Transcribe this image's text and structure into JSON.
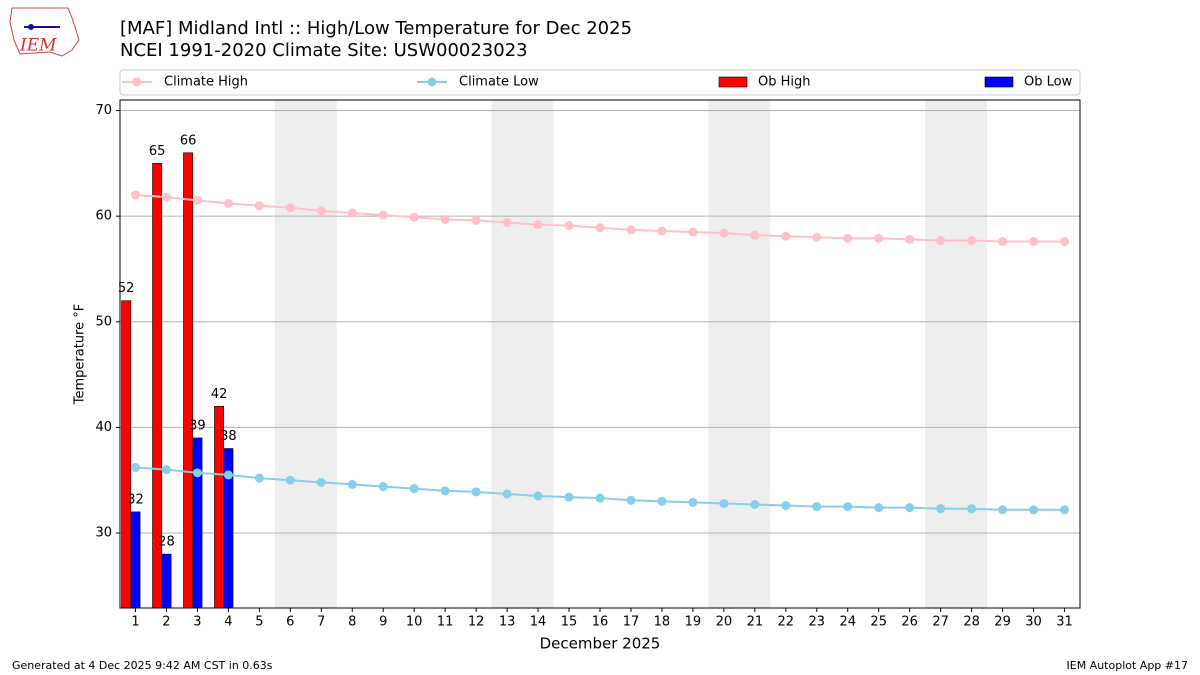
{
  "chart_data": {
    "type": "bar_line",
    "logo_text": "IEM",
    "title": "[MAF] Midland Intl :: High/Low Temperature for Dec 2025",
    "subtitle": "NCEI 1991-2020 Climate Site: USW00023023",
    "xlabel": "December 2025",
    "ylabel": "Temperature °F",
    "footer_left": "Generated at 4 Dec 2025 9:42 AM CST in 0.63s",
    "footer_right": "IEM Autoplot App #17",
    "x": [
      1,
      2,
      3,
      4,
      5,
      6,
      7,
      8,
      9,
      10,
      11,
      12,
      13,
      14,
      15,
      16,
      17,
      18,
      19,
      20,
      21,
      22,
      23,
      24,
      25,
      26,
      27,
      28,
      29,
      30,
      31
    ],
    "xlim": [
      0.5,
      31.5
    ],
    "ylim": [
      22.9,
      71
    ],
    "yticks": [
      30,
      40,
      50,
      60,
      70
    ],
    "grid": true,
    "shaded_ranges": [
      [
        5.5,
        7.5
      ],
      [
        12.5,
        14.5
      ],
      [
        19.5,
        21.5
      ],
      [
        26.5,
        28.5
      ]
    ],
    "shade_color": "#eeeeee",
    "series": [
      {
        "name": "Climate High",
        "kind": "line",
        "color": "#ffc0cb",
        "values": [
          62,
          61.8,
          61.5,
          61.2,
          61.0,
          60.8,
          60.5,
          60.3,
          60.1,
          59.9,
          59.7,
          59.6,
          59.4,
          59.2,
          59.1,
          58.9,
          58.7,
          58.6,
          58.5,
          58.4,
          58.2,
          58.1,
          58.0,
          57.9,
          57.9,
          57.8,
          57.7,
          57.7,
          57.6,
          57.6,
          57.6
        ]
      },
      {
        "name": "Climate Low",
        "kind": "line",
        "color": "#87ceeb",
        "values": [
          36.2,
          36.0,
          35.7,
          35.5,
          35.2,
          35.0,
          34.8,
          34.6,
          34.4,
          34.2,
          34.0,
          33.9,
          33.7,
          33.5,
          33.4,
          33.3,
          33.1,
          33.0,
          32.9,
          32.8,
          32.7,
          32.6,
          32.5,
          32.5,
          32.4,
          32.4,
          32.3,
          32.3,
          32.2,
          32.2,
          32.2
        ]
      },
      {
        "name": "Ob High",
        "kind": "bar",
        "color": "#ff0000",
        "values": [
          52,
          65,
          66,
          42,
          null,
          null,
          null,
          null,
          null,
          null,
          null,
          null,
          null,
          null,
          null,
          null,
          null,
          null,
          null,
          null,
          null,
          null,
          null,
          null,
          null,
          null,
          null,
          null,
          null,
          null,
          null
        ]
      },
      {
        "name": "Ob Low",
        "kind": "bar",
        "color": "#0000ff",
        "values": [
          32,
          28,
          39,
          38,
          null,
          null,
          null,
          null,
          null,
          null,
          null,
          null,
          null,
          null,
          null,
          null,
          null,
          null,
          null,
          null,
          null,
          null,
          null,
          null,
          null,
          null,
          null,
          null,
          null,
          null,
          null
        ]
      }
    ]
  }
}
